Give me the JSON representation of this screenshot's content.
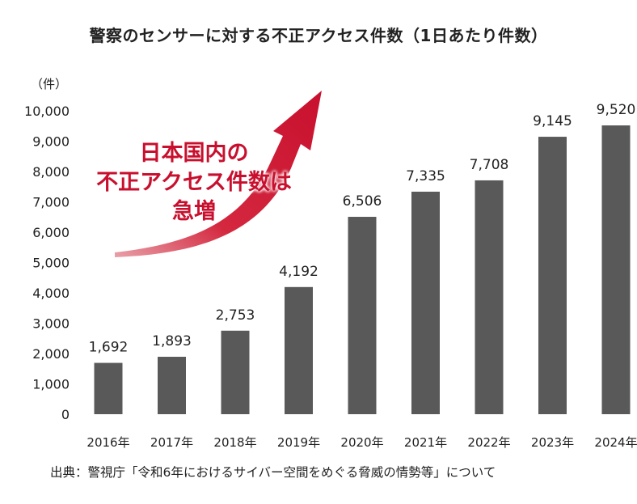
{
  "chart_data": {
    "type": "bar",
    "title": "警察のセンサーに対する不正アクセス件数（1日あたり件数）",
    "ylabel": "（件）",
    "categories": [
      "2016年",
      "2017年",
      "2018年",
      "2019年",
      "2020年",
      "2021年",
      "2022年",
      "2023年",
      "2024年"
    ],
    "values": [
      1692,
      1893,
      2753,
      4192,
      6506,
      7335,
      7708,
      9145,
      9520
    ],
    "value_labels": [
      "1,692",
      "1,893",
      "2,753",
      "4,192",
      "6,506",
      "7,335",
      "7,708",
      "9,145",
      "9,520"
    ],
    "ylim": [
      0,
      10000
    ],
    "yticks": [
      0,
      1000,
      2000,
      3000,
      4000,
      5000,
      6000,
      7000,
      8000,
      9000,
      10000
    ],
    "ytick_labels": [
      "0",
      "1,000",
      "2,000",
      "3,000",
      "4,000",
      "5,000",
      "6,000",
      "7,000",
      "8,000",
      "9,000",
      "10,000"
    ],
    "grid": false,
    "annotation": {
      "lines": [
        "日本国内の",
        "不正アクセス件数は",
        "急増"
      ],
      "color": "#c8102e"
    },
    "bar_color": "#595959"
  },
  "source": "出典：警視庁「令和6年におけるサイバー空間をめぐる脅威の情勢等」について"
}
